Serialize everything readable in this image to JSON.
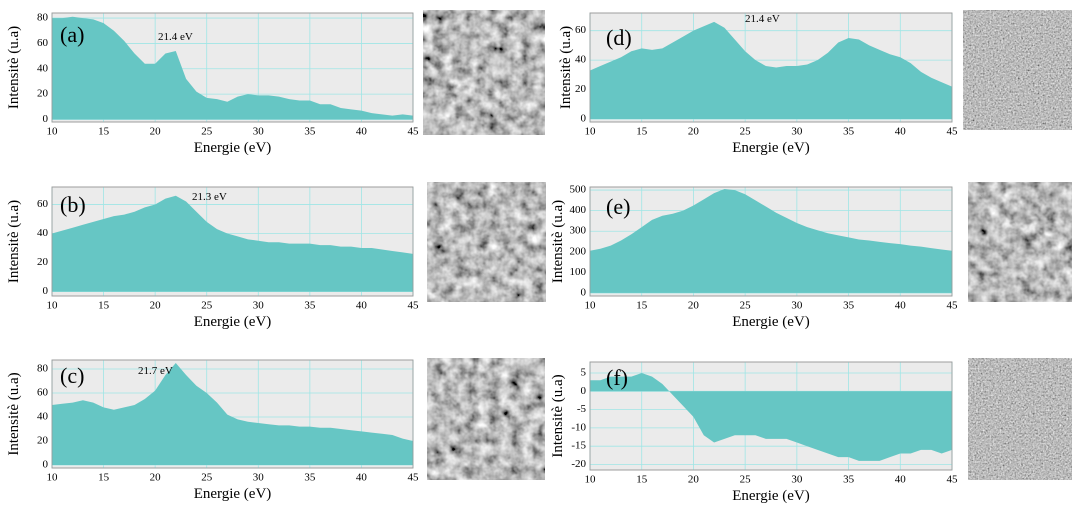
{
  "chart_data": [
    {
      "type": "area",
      "panel_label": "(a)",
      "annotation": "21.4 eV",
      "xlabel": "Energie (eV)",
      "ylabel": "Intensitè (u.a)",
      "color": "#66c6c4",
      "grid": true,
      "x": [
        10,
        11,
        12,
        13,
        14,
        15,
        16,
        17,
        18,
        19,
        20,
        21,
        22,
        23,
        24,
        25,
        26,
        27,
        28,
        29,
        30,
        31,
        32,
        33,
        34,
        35,
        36,
        37,
        38,
        39,
        40,
        41,
        42,
        43,
        44,
        45
      ],
      "values": [
        80,
        80,
        81,
        80,
        79,
        76,
        70,
        62,
        52,
        44,
        44,
        52,
        54,
        32,
        22,
        17,
        16,
        14,
        18,
        20,
        19,
        19,
        18,
        16,
        15,
        15,
        12,
        12,
        9,
        8,
        7,
        5,
        4,
        3,
        4,
        3
      ],
      "xlim": [
        10,
        45
      ],
      "ylim": [
        -2,
        84
      ],
      "xticks": [
        10,
        15,
        20,
        25,
        30,
        35,
        40,
        45
      ],
      "yticks": [
        0,
        20,
        40,
        60,
        80
      ]
    },
    {
      "type": "area",
      "panel_label": "(b)",
      "annotation": "21.3 eV",
      "xlabel": "Energie (eV)",
      "ylabel": "Intensitè (u.a)",
      "color": "#66c6c4",
      "grid": true,
      "x": [
        10,
        11,
        12,
        13,
        14,
        15,
        16,
        17,
        18,
        19,
        20,
        21,
        22,
        23,
        24,
        25,
        26,
        27,
        28,
        29,
        30,
        31,
        32,
        33,
        34,
        35,
        36,
        37,
        38,
        39,
        40,
        41,
        42,
        43,
        44,
        45
      ],
      "values": [
        40,
        42,
        44,
        46,
        48,
        50,
        52,
        53,
        55,
        58,
        60,
        64,
        66,
        62,
        55,
        48,
        43,
        40,
        38,
        36,
        35,
        34,
        34,
        33,
        33,
        33,
        32,
        32,
        31,
        31,
        30,
        30,
        29,
        28,
        27,
        26
      ],
      "xlim": [
        10,
        45
      ],
      "ylim": [
        -3,
        72
      ],
      "xticks": [
        10,
        15,
        20,
        25,
        30,
        35,
        40,
        45
      ],
      "yticks": [
        0,
        20,
        40,
        60
      ]
    },
    {
      "type": "area",
      "panel_label": "(c)",
      "annotation": "21.7 eV",
      "xlabel": "Energie (eV)",
      "ylabel": "Intensitè (u.a)",
      "color": "#66c6c4",
      "grid": true,
      "x": [
        10,
        11,
        12,
        13,
        14,
        15,
        16,
        17,
        18,
        19,
        20,
        21,
        22,
        23,
        24,
        25,
        26,
        27,
        28,
        29,
        30,
        31,
        32,
        33,
        34,
        35,
        36,
        37,
        38,
        39,
        40,
        41,
        42,
        43,
        44,
        45
      ],
      "values": [
        50,
        51,
        52,
        54,
        52,
        48,
        46,
        48,
        50,
        55,
        62,
        75,
        85,
        75,
        66,
        60,
        52,
        42,
        38,
        36,
        35,
        34,
        33,
        33,
        32,
        32,
        31,
        31,
        30,
        29,
        28,
        27,
        26,
        25,
        22,
        20
      ],
      "xlim": [
        10,
        45
      ],
      "ylim": [
        -2.5,
        87.5
      ],
      "xticks": [
        10,
        15,
        20,
        25,
        30,
        35,
        40,
        45
      ],
      "yticks": [
        0,
        20,
        40,
        60,
        80
      ]
    },
    {
      "type": "area",
      "panel_label": "(d)",
      "annotation": "21.4 eV",
      "xlabel": "Energie (eV)",
      "ylabel": "Intensitè (u.a)",
      "color": "#66c6c4",
      "grid": true,
      "x": [
        10,
        11,
        12,
        13,
        14,
        15,
        16,
        17,
        18,
        19,
        20,
        21,
        22,
        23,
        24,
        25,
        26,
        27,
        28,
        29,
        30,
        31,
        32,
        33,
        34,
        35,
        36,
        37,
        38,
        39,
        40,
        41,
        42,
        43,
        44,
        45
      ],
      "values": [
        33,
        36,
        39,
        42,
        46,
        48,
        47,
        48,
        52,
        56,
        60,
        63,
        66,
        62,
        54,
        46,
        40,
        36,
        35,
        36,
        36,
        37,
        40,
        45,
        52,
        55,
        54,
        50,
        47,
        44,
        42,
        38,
        32,
        28,
        25,
        22
      ],
      "xlim": [
        10,
        45
      ],
      "ylim": [
        -2,
        72
      ],
      "xticks": [
        10,
        15,
        20,
        25,
        30,
        35,
        40,
        45
      ],
      "yticks": [
        0,
        20,
        40,
        60
      ]
    },
    {
      "type": "area",
      "panel_label": "(e)",
      "xlabel": "Energie (eV)",
      "ylabel": "Intensitè (u.a)",
      "color": "#66c6c4",
      "grid": true,
      "x": [
        10,
        11,
        12,
        13,
        14,
        15,
        16,
        17,
        18,
        19,
        20,
        21,
        22,
        23,
        24,
        25,
        26,
        27,
        28,
        29,
        30,
        31,
        32,
        33,
        34,
        35,
        36,
        37,
        38,
        39,
        40,
        41,
        42,
        43,
        44,
        45
      ],
      "values": [
        205,
        215,
        230,
        255,
        285,
        320,
        355,
        375,
        385,
        400,
        425,
        455,
        485,
        505,
        500,
        480,
        450,
        420,
        390,
        365,
        340,
        320,
        305,
        290,
        280,
        270,
        260,
        255,
        248,
        242,
        237,
        230,
        225,
        218,
        211,
        205
      ],
      "xlim": [
        10,
        45
      ],
      "ylim": [
        -15,
        515
      ],
      "xticks": [
        10,
        15,
        20,
        25,
        30,
        35,
        40,
        45
      ],
      "yticks": [
        0,
        100,
        200,
        300,
        400,
        500
      ]
    },
    {
      "type": "area",
      "panel_label": "(f)",
      "xlabel": "Energie (eV)",
      "ylabel": "Intensitè (u.a)",
      "color": "#66c6c4",
      "grid": true,
      "x": [
        10,
        11,
        12,
        13,
        14,
        15,
        16,
        17,
        18,
        19,
        20,
        21,
        22,
        23,
        24,
        25,
        26,
        27,
        28,
        29,
        30,
        31,
        32,
        33,
        34,
        35,
        36,
        37,
        38,
        39,
        40,
        41,
        42,
        43,
        44,
        45
      ],
      "values": [
        3,
        3,
        4,
        4,
        4,
        5,
        4,
        2,
        -1,
        -4,
        -7,
        -12,
        -14,
        -13,
        -12,
        -12,
        -12,
        -13,
        -13,
        -13,
        -14,
        -15,
        -16,
        -17,
        -18,
        -18,
        -19,
        -19,
        -19,
        -18,
        -17,
        -17,
        -16,
        -16,
        -17,
        -16
      ],
      "xlim": [
        10,
        45
      ],
      "ylim": [
        -21.5,
        8
      ],
      "xticks": [
        10,
        15,
        20,
        25,
        30,
        35,
        40,
        45
      ],
      "yticks": [
        -20,
        -15,
        -10,
        -5,
        0,
        5
      ]
    }
  ]
}
